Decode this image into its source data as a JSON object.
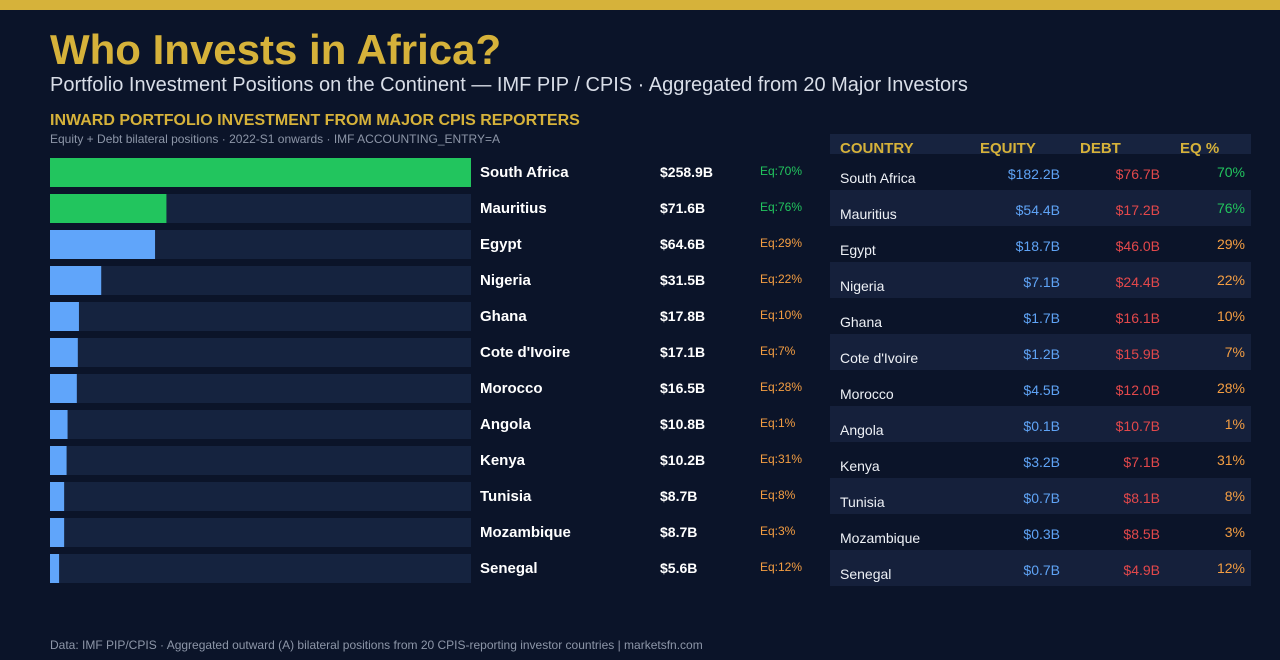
{
  "header": {
    "title": "Who Invests in Africa?",
    "subtitle": "Portfolio Investment Positions on the Continent — IMF PIP / CPIS · Aggregated from 20 Major Investors"
  },
  "section": {
    "title": "INWARD PORTFOLIO INVESTMENT FROM MAJOR CPIS REPORTERS",
    "note": "Equity + Debt bilateral positions · 2022-S1 onwards · IMF ACCOUNTING_ENTRY=A"
  },
  "colors": {
    "accent": "#d6b23a",
    "bar_equity_majority": "#22c55e",
    "bar_debt_majority": "#60a5fa",
    "bar_track": "#15233f",
    "equity": "#5fa3f5",
    "debt": "#e2484b",
    "eq_high": "#22c55e",
    "eq_low": "#f59e42"
  },
  "chart_data": {
    "type": "bar",
    "orientation": "horizontal",
    "unit": "USD billions",
    "xlim": [
      0,
      258.9
    ],
    "categories": [
      "South Africa",
      "Mauritius",
      "Egypt",
      "Nigeria",
      "Ghana",
      "Cote d'Ivoire",
      "Morocco",
      "Angola",
      "Kenya",
      "Tunisia",
      "Mozambique",
      "Senegal"
    ],
    "values": [
      258.9,
      71.6,
      64.6,
      31.5,
      17.8,
      17.1,
      16.5,
      10.8,
      10.2,
      8.7,
      8.7,
      5.6
    ],
    "value_labels": [
      "$258.9B",
      "$71.6B",
      "$64.6B",
      "$31.5B",
      "$17.8B",
      "$17.1B",
      "$16.5B",
      "$10.8B",
      "$10.2B",
      "$8.7B",
      "$8.7B",
      "$5.6B"
    ],
    "equity_share_labels": [
      "Eq:70%",
      "Eq:76%",
      "Eq:29%",
      "Eq:22%",
      "Eq:10%",
      "Eq:7%",
      "Eq:28%",
      "Eq:1%",
      "Eq:31%",
      "Eq:8%",
      "Eq:3%",
      "Eq:12%"
    ],
    "equity_share_pct": [
      70,
      76,
      29,
      22,
      10,
      7,
      28,
      1,
      31,
      8,
      3,
      12
    ]
  },
  "table": {
    "headers": {
      "country": "COUNTRY",
      "equity": "EQUITY",
      "debt": "DEBT",
      "eqpct": "EQ %"
    },
    "rows": [
      {
        "country": "South Africa",
        "equity": "$182.2B",
        "debt": "$76.7B",
        "eqpct": "70%"
      },
      {
        "country": "Mauritius",
        "equity": "$54.4B",
        "debt": "$17.2B",
        "eqpct": "76%"
      },
      {
        "country": "Egypt",
        "equity": "$18.7B",
        "debt": "$46.0B",
        "eqpct": "29%"
      },
      {
        "country": "Nigeria",
        "equity": "$7.1B",
        "debt": "$24.4B",
        "eqpct": "22%"
      },
      {
        "country": "Ghana",
        "equity": "$1.7B",
        "debt": "$16.1B",
        "eqpct": "10%"
      },
      {
        "country": "Cote d'Ivoire",
        "equity": "$1.2B",
        "debt": "$15.9B",
        "eqpct": "7%"
      },
      {
        "country": "Morocco",
        "equity": "$4.5B",
        "debt": "$12.0B",
        "eqpct": "28%"
      },
      {
        "country": "Angola",
        "equity": "$0.1B",
        "debt": "$10.7B",
        "eqpct": "1%"
      },
      {
        "country": "Kenya",
        "equity": "$3.2B",
        "debt": "$7.1B",
        "eqpct": "31%"
      },
      {
        "country": "Tunisia",
        "equity": "$0.7B",
        "debt": "$8.1B",
        "eqpct": "8%"
      },
      {
        "country": "Mozambique",
        "equity": "$0.3B",
        "debt": "$8.5B",
        "eqpct": "3%"
      },
      {
        "country": "Senegal",
        "equity": "$0.7B",
        "debt": "$4.9B",
        "eqpct": "12%"
      }
    ]
  },
  "footer": "Data: IMF PIP/CPIS · Aggregated outward (A) bilateral positions from 20 CPIS-reporting investor countries  |  marketsfn.com"
}
